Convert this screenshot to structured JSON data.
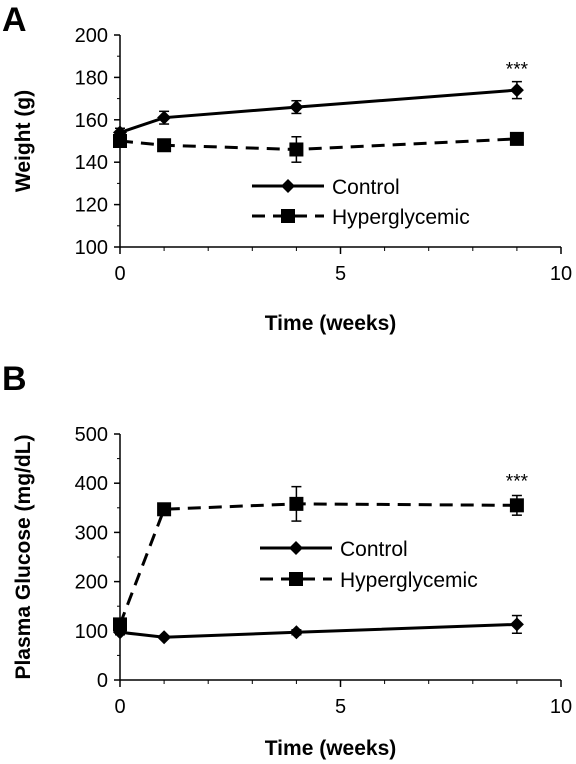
{
  "chart_data": [
    {
      "panel": "A",
      "type": "line",
      "xlabel": "Time (weeks)",
      "ylabel": "Weight (g)",
      "xlim": [
        0,
        10
      ],
      "ylim": [
        100,
        200
      ],
      "xticks": [
        0,
        5,
        10
      ],
      "yticks": [
        100,
        120,
        140,
        160,
        180,
        200
      ],
      "legend_position": "center-right",
      "series": [
        {
          "name": "Control",
          "marker": "diamond",
          "line": "solid",
          "x": [
            0,
            1,
            4,
            9
          ],
          "y": [
            154,
            161,
            166,
            174
          ],
          "err": [
            2,
            3,
            3,
            4
          ]
        },
        {
          "name": "Hyperglycemic",
          "marker": "square",
          "line": "dashed",
          "x": [
            0,
            1,
            4,
            9
          ],
          "y": [
            150,
            148,
            146,
            151
          ],
          "err": [
            2,
            2,
            6,
            2
          ]
        }
      ],
      "annotations": [
        {
          "text": "***",
          "x": 9
        }
      ]
    },
    {
      "panel": "B",
      "type": "line",
      "xlabel": "Time (weeks)",
      "ylabel": "Plasma Glucose (mg/dL)",
      "xlim": [
        0,
        10
      ],
      "ylim": [
        0,
        500
      ],
      "xticks": [
        0,
        5,
        10
      ],
      "yticks": [
        0,
        100,
        200,
        300,
        400,
        500
      ],
      "legend_position": "center-right",
      "series": [
        {
          "name": "Control",
          "marker": "diamond",
          "line": "solid",
          "x": [
            0,
            1,
            4,
            9
          ],
          "y": [
            97,
            87,
            97,
            113
          ],
          "err": [
            5,
            3,
            5,
            18
          ]
        },
        {
          "name": "Hyperglycemic",
          "marker": "square",
          "line": "dashed",
          "x": [
            0,
            1,
            4,
            9
          ],
          "y": [
            113,
            347,
            358,
            355
          ],
          "err": [
            8,
            10,
            35,
            20
          ]
        }
      ],
      "annotations": [
        {
          "text": "***",
          "x": 9
        }
      ]
    }
  ]
}
